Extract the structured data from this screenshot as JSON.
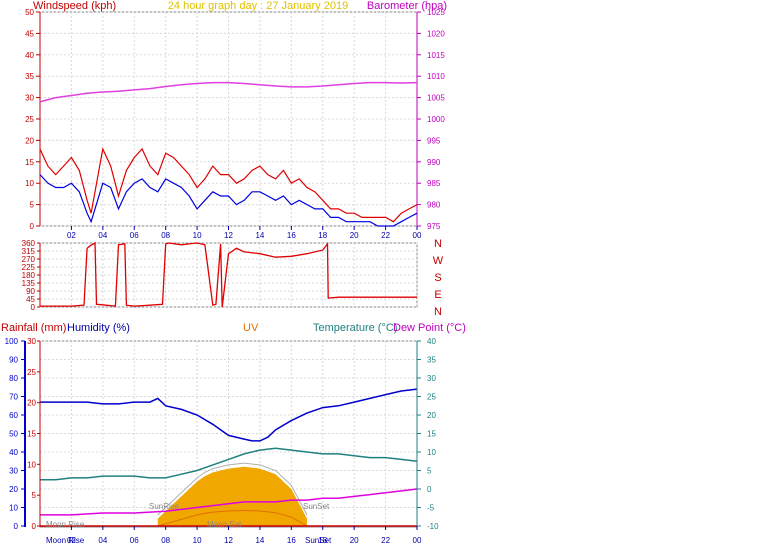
{
  "colors": {
    "wind": "#e00000",
    "windAvg": "#0000e0",
    "baro": "#e040e0",
    "title": "#e0c000",
    "grid": "#d8d8d8",
    "humidity": "#0000cc",
    "temp": "#208080",
    "dew": "#e000e0",
    "uv": "#e07000",
    "solar": "#f0a800",
    "rain": "#d00000"
  },
  "chart_data": [
    {
      "type": "line",
      "title": "24 hour graph day : 27 January 2019",
      "ylabel": "Windspeed (kph)",
      "y2label": "Barometer (hpa)",
      "ylim": [
        0,
        50
      ],
      "y2lim": [
        975,
        1025
      ],
      "ylabels": [
        "0",
        "5",
        "10",
        "15",
        "20",
        "25",
        "30",
        "35",
        "40",
        "45",
        "50"
      ],
      "y2labels": [
        "975",
        "980",
        "985",
        "990",
        "995",
        "1000",
        "1005",
        "1010",
        "1015",
        "1020",
        "1025"
      ],
      "xlim": [
        0,
        24
      ],
      "xlabels": [
        "02",
        "04",
        "06",
        "08",
        "10",
        "12",
        "14",
        "16",
        "18",
        "20",
        "22",
        "00"
      ],
      "grid": true,
      "series": [
        {
          "name": "Windspeed (kph)",
          "axis": "left",
          "x": [
            0,
            0.5,
            1,
            1.5,
            2,
            2.5,
            3,
            3.25,
            3.5,
            4,
            4.5,
            5,
            5.5,
            6,
            6.5,
            7,
            7.5,
            8,
            8.5,
            9,
            9.5,
            10,
            10.5,
            11,
            11.5,
            12,
            12.5,
            13,
            13.5,
            14,
            14.5,
            15,
            15.5,
            16,
            16.5,
            17,
            17.5,
            18,
            18.5,
            19,
            19.5,
            20,
            20.5,
            21,
            21.5,
            22,
            22.5,
            23,
            23.5,
            24
          ],
          "y": [
            18,
            14,
            12,
            14,
            16,
            13,
            6,
            3,
            8,
            18,
            14,
            7,
            13,
            16,
            18,
            14,
            12,
            17,
            16,
            14,
            12,
            9,
            11,
            14,
            12,
            12,
            10,
            11,
            13,
            14,
            12,
            11,
            13,
            10,
            11,
            9,
            8,
            6,
            4,
            4,
            3,
            3,
            2,
            2,
            2,
            2,
            1,
            3,
            4,
            5
          ]
        },
        {
          "name": "Average",
          "axis": "left",
          "x": [
            0,
            0.5,
            1,
            1.5,
            2,
            2.5,
            3,
            3.25,
            3.5,
            4,
            4.5,
            5,
            5.5,
            6,
            6.5,
            7,
            7.5,
            8,
            8.5,
            9,
            9.5,
            10,
            10.5,
            11,
            11.5,
            12,
            12.5,
            13,
            13.5,
            14,
            14.5,
            15,
            15.5,
            16,
            16.5,
            17,
            17.5,
            18,
            18.5,
            19,
            19.5,
            20,
            20.5,
            21,
            21.5,
            22,
            22.5,
            23,
            23.5,
            24
          ],
          "y": [
            12,
            10,
            9,
            9,
            10,
            8,
            3,
            1,
            4,
            10,
            9,
            4,
            8,
            10,
            11,
            9,
            8,
            11,
            10,
            9,
            7,
            4,
            6,
            8,
            7,
            7,
            5,
            6,
            8,
            8,
            7,
            6,
            7,
            5,
            6,
            5,
            4,
            4,
            2,
            2,
            1,
            1,
            1,
            1,
            0,
            0,
            0,
            1,
            2,
            3
          ]
        },
        {
          "name": "Barometer (hpa)",
          "axis": "right",
          "x": [
            0,
            1,
            2,
            3,
            4,
            5,
            6,
            7,
            8,
            9,
            10,
            11,
            12,
            13,
            14,
            15,
            16,
            17,
            18,
            19,
            20,
            21,
            22,
            23,
            24
          ],
          "y": [
            1004,
            1005,
            1005.5,
            1006,
            1006.3,
            1006.5,
            1006.8,
            1007.1,
            1007.6,
            1008,
            1008.3,
            1008.5,
            1008.5,
            1008.3,
            1008,
            1007.7,
            1007.5,
            1007.5,
            1007.7,
            1008,
            1008.3,
            1008.5,
            1008.5,
            1008.4,
            1008.5
          ]
        }
      ]
    },
    {
      "type": "line",
      "ylim": [
        0,
        360
      ],
      "ylabels": [
        "0",
        "45",
        "90",
        "135",
        "180",
        "225",
        "270",
        "315",
        "360"
      ],
      "y2labels": [
        "N",
        "W",
        "S",
        "E",
        "N"
      ],
      "xlim": [
        0,
        24
      ],
      "grid": true,
      "series": [
        {
          "name": "Wind direction",
          "x": [
            0,
            2,
            2.8,
            3,
            3.2,
            3.5,
            3.6,
            4.2,
            4.8,
            5,
            5.4,
            5.5,
            6,
            7,
            7.8,
            8,
            8.2,
            9,
            9.5,
            10,
            10.5,
            11,
            11.2,
            11.5,
            11.6,
            12,
            12.5,
            13,
            14,
            15,
            16,
            17,
            18,
            18.3,
            18.35,
            19,
            20,
            22,
            24
          ],
          "y": [
            5,
            5,
            10,
            330,
            345,
            360,
            15,
            10,
            5,
            350,
            355,
            10,
            5,
            10,
            15,
            355,
            360,
            350,
            355,
            360,
            350,
            10,
            15,
            355,
            0,
            300,
            330,
            310,
            300,
            280,
            285,
            300,
            320,
            355,
            50,
            55,
            55,
            55,
            55
          ]
        }
      ]
    },
    {
      "type": "line",
      "legend": [
        "Rainfall (mm)",
        "Humidity (%)",
        "UV",
        "Temperature (°C)",
        "Dew Point (°C)"
      ],
      "axisLabels": {
        "humidity": [
          "0",
          "10",
          "20",
          "30",
          "40",
          "50",
          "60",
          "70",
          "80",
          "90",
          "100"
        ],
        "rain": [
          "0",
          "5",
          "10",
          "15",
          "20",
          "25",
          "30"
        ],
        "temp": [
          "-10",
          "-5",
          "0",
          "5",
          "10",
          "15",
          "20",
          "25",
          "30",
          "35",
          "40"
        ]
      },
      "xlim": [
        0,
        24
      ],
      "annotations": [
        "Moon Rise",
        "SunRise",
        "Moon Set",
        "SunSet",
        "Moon Rise",
        "SunSet"
      ],
      "series": [
        {
          "name": "Humidity (%)",
          "axis": "humidity",
          "x": [
            0,
            1,
            2,
            3,
            4,
            5,
            6,
            7,
            7.5,
            8,
            9,
            10,
            11,
            12,
            13,
            13.5,
            14,
            14.5,
            15,
            16,
            17,
            18,
            19,
            20,
            21,
            22,
            23,
            24
          ],
          "y": [
            67,
            67,
            67,
            67,
            66,
            66,
            67,
            67,
            69,
            65,
            63,
            60,
            55,
            49,
            47,
            46,
            46,
            48,
            52,
            57,
            61,
            64,
            65,
            67,
            69,
            71,
            73,
            74
          ]
        },
        {
          "name": "Temperature (°C)",
          "axis": "temp",
          "x": [
            0,
            1,
            2,
            3,
            4,
            5,
            6,
            7,
            8,
            9,
            10,
            11,
            12,
            13,
            14,
            15,
            16,
            17,
            18,
            19,
            20,
            21,
            22,
            23,
            24
          ],
          "y": [
            2.5,
            2.5,
            3,
            3,
            3.5,
            3.5,
            3.5,
            3,
            3,
            4,
            5,
            6.5,
            8,
            9.5,
            10.5,
            11,
            10.5,
            10,
            9.5,
            9.5,
            9,
            8.5,
            8.5,
            8,
            7.5
          ]
        },
        {
          "name": "Dew Point (°C)",
          "axis": "temp",
          "x": [
            0,
            2,
            4,
            6,
            8,
            9,
            10,
            11,
            12,
            13,
            14,
            15,
            16,
            17,
            18,
            19,
            20,
            21,
            22,
            23,
            24
          ],
          "y": [
            -7,
            -7,
            -6.5,
            -6.5,
            -6,
            -5.5,
            -5,
            -4.5,
            -4,
            -3.5,
            -3.5,
            -3.5,
            -3,
            -3,
            -2.5,
            -2.5,
            -2,
            -1.5,
            -1,
            -0.5,
            0
          ]
        },
        {
          "name": "UV",
          "axis": "temp",
          "x": [
            7.5,
            8.5,
            9.5,
            10,
            10.5,
            11,
            12,
            13,
            14,
            15,
            16,
            16.5,
            17
          ],
          "y": [
            -10,
            -6,
            -2,
            0,
            1.5,
            2.5,
            3.5,
            4,
            3.5,
            2,
            -2,
            -6,
            -10
          ]
        }
      ]
    }
  ]
}
